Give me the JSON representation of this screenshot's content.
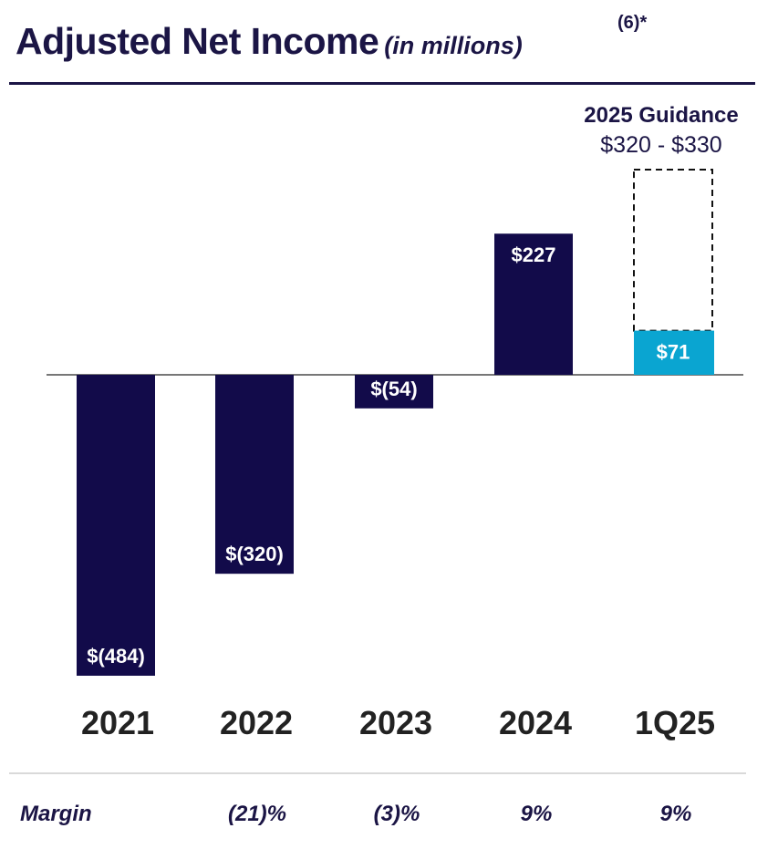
{
  "title": {
    "main": "Adjusted Net Income",
    "units": "(in millions)",
    "note": "(6)*"
  },
  "guidance": {
    "title": "2025 Guidance",
    "range": "$320 - $330",
    "low": 320,
    "high": 330
  },
  "chart_data": {
    "type": "bar",
    "categories": [
      "2021",
      "2022",
      "2023",
      "2024",
      "1Q25"
    ],
    "values": [
      -484,
      -320,
      -54,
      227,
      71
    ],
    "data_labels": [
      "$(484)",
      "$(320)",
      "$(54)",
      "$227",
      "$71"
    ],
    "guidance": {
      "category": "1Q25",
      "low": 320,
      "high": 330
    },
    "colors": {
      "bar": "#120b4a",
      "highlight": "#0aa5d1",
      "baseline": "#777777",
      "text": "#1b1545"
    },
    "grid": false
  },
  "margin": {
    "label": "Margin",
    "values": [
      "",
      "(21)%",
      "(3)%",
      "9%",
      "9%"
    ]
  }
}
